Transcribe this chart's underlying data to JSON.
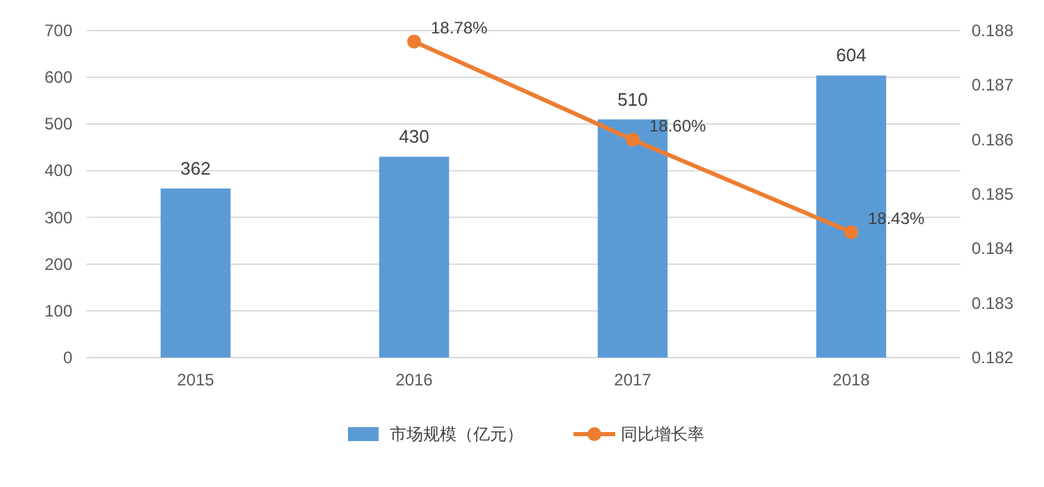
{
  "chart_data": {
    "type": "bar",
    "categories": [
      "2015",
      "2016",
      "2017",
      "2018"
    ],
    "series": [
      {
        "name": "市场规模（亿元）",
        "color": "#5b9bd5",
        "values": [
          362,
          430,
          510,
          604
        ],
        "data_labels": true
      },
      {
        "name": "同比增长率",
        "type": "line",
        "axis": "y2",
        "color": "#ed7d31",
        "marker": "circle",
        "values": [
          null,
          0.1878,
          0.186,
          0.1843
        ],
        "value_labels": [
          null,
          "18.78%",
          "18.60%",
          "18.43%"
        ]
      }
    ],
    "ylim": [
      0,
      700
    ],
    "yticks": [
      0,
      100,
      200,
      300,
      400,
      500,
      600,
      700
    ],
    "y2lim": [
      0.182,
      0.188
    ],
    "y2ticks": [
      0.182,
      0.183,
      0.184,
      0.185,
      0.186,
      0.187,
      0.188
    ],
    "grid": "y",
    "legend": "bottom"
  }
}
